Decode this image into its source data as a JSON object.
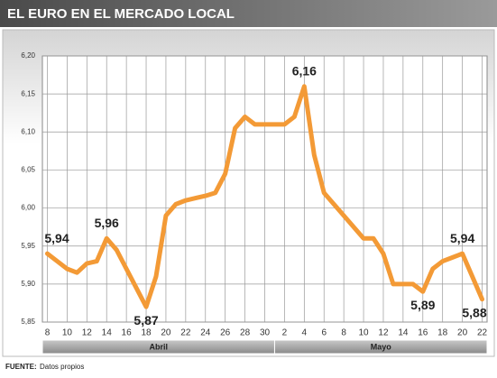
{
  "chart_data": {
    "type": "line",
    "title": "EL EURO EN EL MERCADO LOCAL",
    "categories": [
      "8",
      null,
      "10",
      null,
      "12",
      null,
      "14",
      null,
      "16",
      null,
      "18",
      null,
      "20",
      null,
      "22",
      null,
      "24",
      null,
      "26",
      null,
      "28",
      null,
      "30",
      null,
      "2",
      null,
      "4",
      null,
      "6",
      null,
      "8",
      null,
      "10",
      null,
      "12",
      null,
      "14",
      null,
      "16",
      null,
      "18",
      null,
      "20",
      null,
      "22"
    ],
    "x_groups": [
      "Abril",
      "Mayo"
    ],
    "values": [
      5.94,
      5.93,
      5.92,
      5.915,
      5.927,
      5.93,
      5.96,
      5.945,
      5.92,
      5.895,
      5.87,
      5.91,
      5.99,
      6.005,
      6.01,
      6.013,
      6.016,
      6.02,
      6.045,
      6.105,
      6.12,
      6.11,
      6.11,
      6.11,
      6.11,
      6.12,
      6.16,
      6.07,
      6.02,
      6.005,
      5.99,
      5.975,
      5.96,
      5.96,
      5.94,
      5.9,
      5.9,
      5.9,
      5.89,
      5.92,
      5.93,
      5.935,
      5.94,
      5.91,
      5.88
    ],
    "value_labels": [
      "5,94",
      null,
      null,
      null,
      null,
      null,
      "5,96",
      null,
      null,
      null,
      "5,87",
      null,
      null,
      null,
      null,
      null,
      null,
      null,
      null,
      null,
      null,
      null,
      null,
      null,
      null,
      null,
      "6,16",
      null,
      null,
      null,
      null,
      null,
      null,
      null,
      null,
      null,
      null,
      null,
      "5,89",
      null,
      null,
      null,
      "5,94",
      null,
      "5,88"
    ],
    "color": "#f39a36",
    "ylim": [
      5.85,
      6.2
    ],
    "yticks": [
      {
        "value": 5.85,
        "label": "5,85"
      },
      {
        "value": 5.9,
        "label": "5,90"
      },
      {
        "value": 5.95,
        "label": "5,95"
      },
      {
        "value": 6.0,
        "label": "6,00"
      },
      {
        "value": 6.05,
        "label": "6,05"
      },
      {
        "value": 6.1,
        "label": "6,10"
      },
      {
        "value": 6.15,
        "label": "6,15"
      },
      {
        "value": 6.2,
        "label": "6,20"
      }
    ],
    "grid": true,
    "source_label": "FUENTE:",
    "source": "Datos propios"
  }
}
